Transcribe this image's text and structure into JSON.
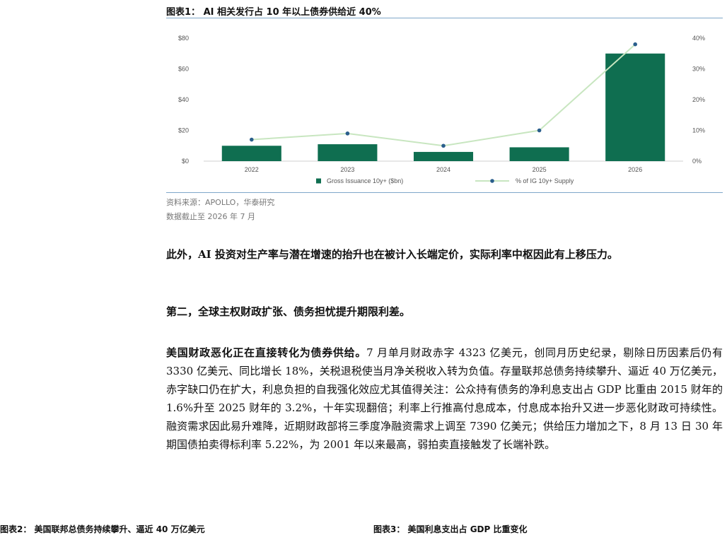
{
  "figure": {
    "title": "图表1： AI 相关发行占 10 年以上债券供给近 40%",
    "source_line1": "资料来源：APOLLO，华泰研究",
    "source_line2": "数据截止至 2026 年 7 月"
  },
  "chart_data": {
    "type": "bar",
    "categories": [
      "2022",
      "2023",
      "2024",
      "2025",
      "2026"
    ],
    "series": [
      {
        "name": "Gross Issuance 10y+ ($bn)",
        "type": "bar",
        "axis": "left",
        "values": [
          10,
          11,
          6,
          9,
          70
        ]
      },
      {
        "name": "% of IG 10y+ Supply",
        "type": "line",
        "axis": "right",
        "values": [
          7,
          9,
          5,
          10,
          38
        ]
      }
    ],
    "y_left": {
      "ticks": [
        "$0",
        "$20",
        "$40",
        "$60",
        "$80"
      ],
      "range": [
        0,
        80
      ]
    },
    "y_right": {
      "ticks": [
        "0%",
        "10%",
        "20%",
        "30%",
        "40%"
      ],
      "range": [
        0,
        40
      ]
    },
    "legend": "bottom",
    "colors": {
      "bar": "#0f6e50",
      "line": "#c8e6c0",
      "marker": "#2a5e8c"
    }
  },
  "paragraphs": {
    "p1": "此外，AI 投资对生产率与潜在增速的抬升也在被计入长端定价，实际利率中枢因此有上移压力。",
    "p2": "第二，全球主权财政扩张、债务担忧提升期限利差。",
    "p3_lead": "美国财政恶化正在直接转化为债券供给。",
    "p3_body": "7 月单月财政赤字 4323 亿美元，创同月历史纪录，剔除日历因素后仍有 3330 亿美元、同比增长 18%，关税退税使当月净关税收入转为负值。存量联邦总债务持续攀升、逼近 40 万亿美元，赤字缺口仍在扩大，利息负担的自我强化效应尤其值得关注：公众持有债务的净利息支出占 GDP 比重由 2015 财年的 1.6%升至 2025 财年的 3.2%，十年实现翻倍；利率上行推高付息成本，付息成本抬升又进一步恶化财政可持续性。融资需求因此易升难降，近期财政部将三季度净融资需求上调至 7390 亿美元；供给压力增加之下，8 月 13 日 30 年期国债拍卖得标利率 5.22%，为 2001 年以来最高，弱拍卖直接触发了长端补跌。"
  },
  "footer": {
    "left": "图表2：  美国联邦总债务持续攀升、逼近 40 万亿美元",
    "right": "图表3：  美国利息支出占 GDP 比重变化"
  }
}
